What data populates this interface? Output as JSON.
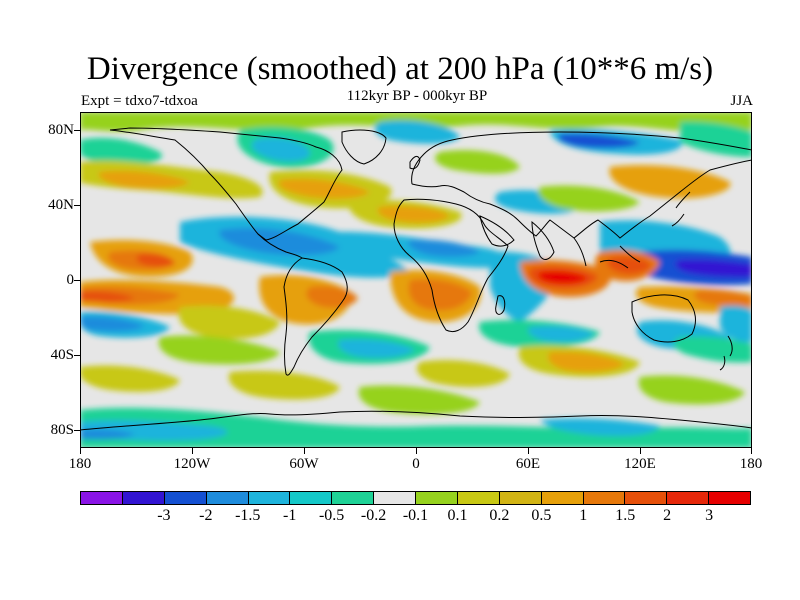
{
  "header": {
    "title": "Divergence (smoothed) at 200 hPa (10**6 m/s)",
    "experiment": "Expt = tdxo7-tdxoa",
    "period": "112kyr BP - 000kyr BP",
    "season": "JJA"
  },
  "map": {
    "projection": "equirectangular",
    "background_color": "#e6e6e6",
    "lat_labels": [
      "80N",
      "40N",
      "0",
      "40S",
      "80S"
    ],
    "lon_labels": [
      "180",
      "120W",
      "60W",
      "0",
      "60E",
      "120E",
      "180"
    ],
    "coastline_color": "#000000"
  },
  "colorbar": {
    "colors": [
      "#8a14e6",
      "#3214d2",
      "#1450d2",
      "#1e8cdc",
      "#1eb4dc",
      "#14c8c8",
      "#1ed296",
      "#e6e6e6",
      "#96d21e",
      "#c8c814",
      "#d2b414",
      "#e6a00a",
      "#e6780a",
      "#e6500a",
      "#e6280a",
      "#e60000"
    ],
    "labels": [
      "-3",
      "-2",
      "-1.5",
      "-1",
      "-0.5",
      "-0.2",
      "-0.1",
      "0.1",
      "0.2",
      "0.5",
      "1",
      "1.5",
      "2",
      "3"
    ]
  }
}
